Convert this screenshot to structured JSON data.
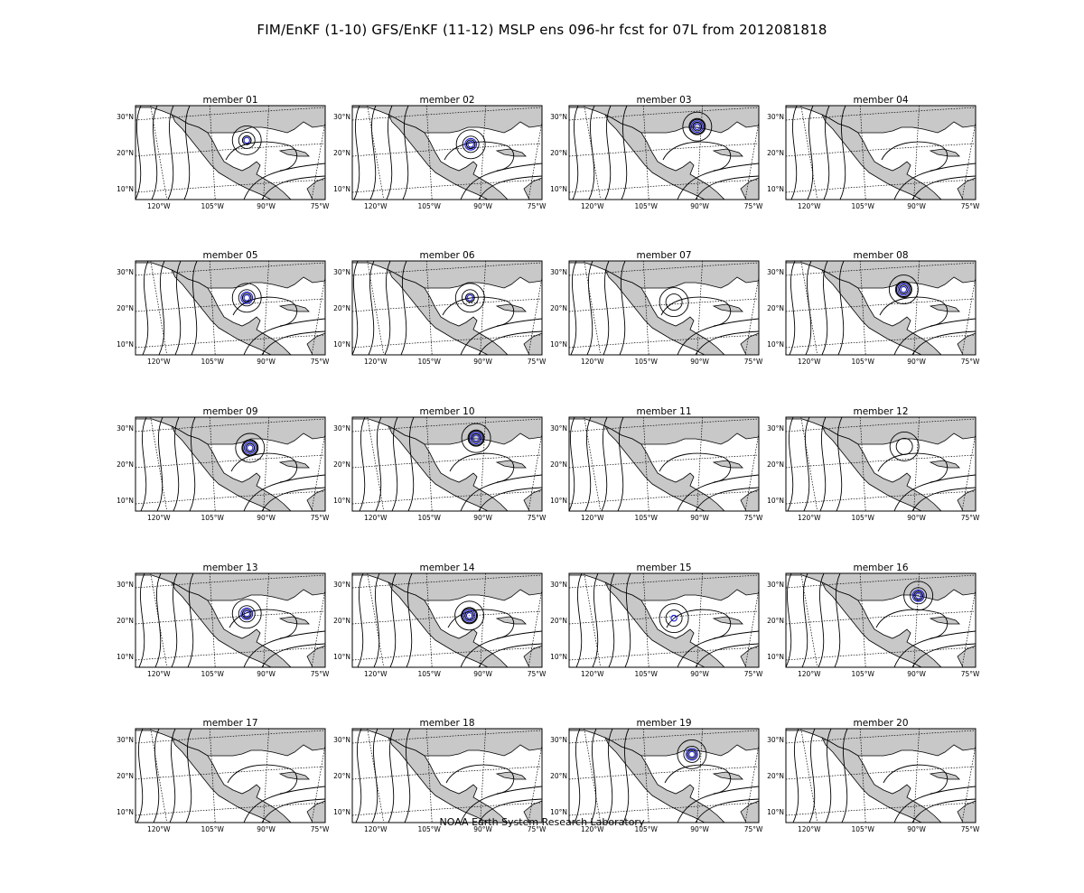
{
  "title": "FIM/EnKF (1-10) GFS/EnKF (11-12) MSLP ens 096-hr fcst for 07L from 2012081818",
  "footer": "NOAA Earth System Research Laboratory",
  "map_axes": {
    "lat_labels": [
      "30°N",
      "20°N",
      "10°N"
    ],
    "lon_labels": [
      "120°W",
      "105°W",
      "90°W",
      "75°W"
    ]
  },
  "colors": {
    "land": "#c8c8c8",
    "contour": "#000000",
    "low_contour": "#1a1adb",
    "background": "#ffffff"
  },
  "panels": [
    {
      "label": "member 01",
      "lon": -95.4,
      "lat": 23.4,
      "strength": 2
    },
    {
      "label": "member 02",
      "lon": -93.4,
      "lat": 22.3,
      "strength": 3
    },
    {
      "label": "member 03",
      "lon": -90.7,
      "lat": 27.2,
      "strength": 4
    },
    {
      "label": "member 04",
      "lon": 0,
      "lat": 0,
      "strength": 0
    },
    {
      "label": "member 05",
      "lon": -95.4,
      "lat": 22.8,
      "strength": 3
    },
    {
      "label": "member 06",
      "lon": -93.6,
      "lat": 22.8,
      "strength": 2
    },
    {
      "label": "member 07",
      "lon": -97.2,
      "lat": 21.6,
      "strength": 0
    },
    {
      "label": "member 08",
      "lon": -93.6,
      "lat": 25.1,
      "strength": 4
    },
    {
      "label": "member 09",
      "lon": -94.5,
      "lat": 24.5,
      "strength": 4
    },
    {
      "label": "member 10",
      "lon": -91.9,
      "lat": 27.2,
      "strength": 4
    },
    {
      "label": "member 11",
      "lon": 0,
      "lat": 0,
      "strength": 0
    },
    {
      "label": "member 12",
      "lon": -93.4,
      "lat": 24.9,
      "strength": 0
    },
    {
      "label": "member 13",
      "lon": -95.4,
      "lat": 21.8,
      "strength": 3
    },
    {
      "label": "member 14",
      "lon": -93.8,
      "lat": 21.3,
      "strength": 4
    },
    {
      "label": "member 15",
      "lon": -97.2,
      "lat": 20.6,
      "strength": 1
    },
    {
      "label": "member 16",
      "lon": -89.5,
      "lat": 26.8,
      "strength": 3
    },
    {
      "label": "member 17",
      "lon": 0,
      "lat": 0,
      "strength": 0
    },
    {
      "label": "member 18",
      "lon": 0,
      "lat": 0,
      "strength": 0
    },
    {
      "label": "member 19",
      "lon": -92.2,
      "lat": 25.9,
      "strength": 3
    },
    {
      "label": "member 20",
      "lon": 0,
      "lat": 0,
      "strength": 0
    }
  ]
}
